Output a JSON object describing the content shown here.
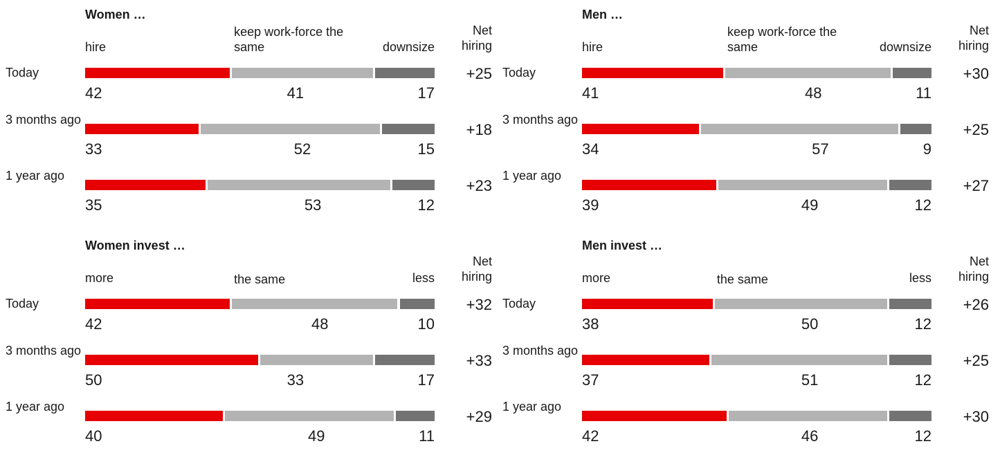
{
  "row_labels": [
    "Today",
    "3 months ago",
    "1 year ago"
  ],
  "colors": {
    "first": "#e60000",
    "middle": "#b3b3b3",
    "last": "#737373"
  },
  "chart_data": [
    {
      "type": "bar",
      "stacked": true,
      "orientation": "horizontal",
      "title": "Women …",
      "headers": {
        "first": "hire",
        "middle": "keep work-force the same",
        "last": "downsize",
        "net": "Net hiring"
      },
      "categories": [
        "Today",
        "3 months ago",
        "1 year ago"
      ],
      "series": [
        {
          "name": "hire",
          "values": [
            42,
            33,
            35
          ]
        },
        {
          "name": "keep work-force the same",
          "values": [
            41,
            52,
            53
          ]
        },
        {
          "name": "downsize",
          "values": [
            17,
            15,
            12
          ]
        }
      ],
      "net": [
        "+25",
        "+18",
        "+23"
      ]
    },
    {
      "type": "bar",
      "stacked": true,
      "orientation": "horizontal",
      "title": "Men …",
      "headers": {
        "first": "hire",
        "middle": "keep work-force the same",
        "last": "downsize",
        "net": "Net hiring"
      },
      "categories": [
        "Today",
        "3 months ago",
        "1 year ago"
      ],
      "series": [
        {
          "name": "hire",
          "values": [
            41,
            34,
            39
          ]
        },
        {
          "name": "keep work-force the same",
          "values": [
            48,
            57,
            49
          ]
        },
        {
          "name": "downsize",
          "values": [
            11,
            9,
            12
          ]
        }
      ],
      "net": [
        "+30",
        "+25",
        "+27"
      ]
    },
    {
      "type": "bar",
      "stacked": true,
      "orientation": "horizontal",
      "title": "Women invest …",
      "headers": {
        "first": "more",
        "middle": "the same",
        "last": "less",
        "net": "Net hiring"
      },
      "categories": [
        "Today",
        "3 months ago",
        "1 year ago"
      ],
      "series": [
        {
          "name": "more",
          "values": [
            42,
            50,
            40
          ]
        },
        {
          "name": "the same",
          "values": [
            48,
            33,
            49
          ]
        },
        {
          "name": "less",
          "values": [
            10,
            17,
            11
          ]
        }
      ],
      "net": [
        "+32",
        "+33",
        "+29"
      ]
    },
    {
      "type": "bar",
      "stacked": true,
      "orientation": "horizontal",
      "title": "Men invest …",
      "headers": {
        "first": "more",
        "middle": "the same",
        "last": "less",
        "net": "Net hiring"
      },
      "categories": [
        "Today",
        "3 months ago",
        "1 year ago"
      ],
      "series": [
        {
          "name": "more",
          "values": [
            38,
            37,
            42
          ]
        },
        {
          "name": "the same",
          "values": [
            50,
            51,
            46
          ]
        },
        {
          "name": "less",
          "values": [
            12,
            12,
            12
          ]
        }
      ],
      "net": [
        "+26",
        "+25",
        "+30"
      ]
    }
  ]
}
